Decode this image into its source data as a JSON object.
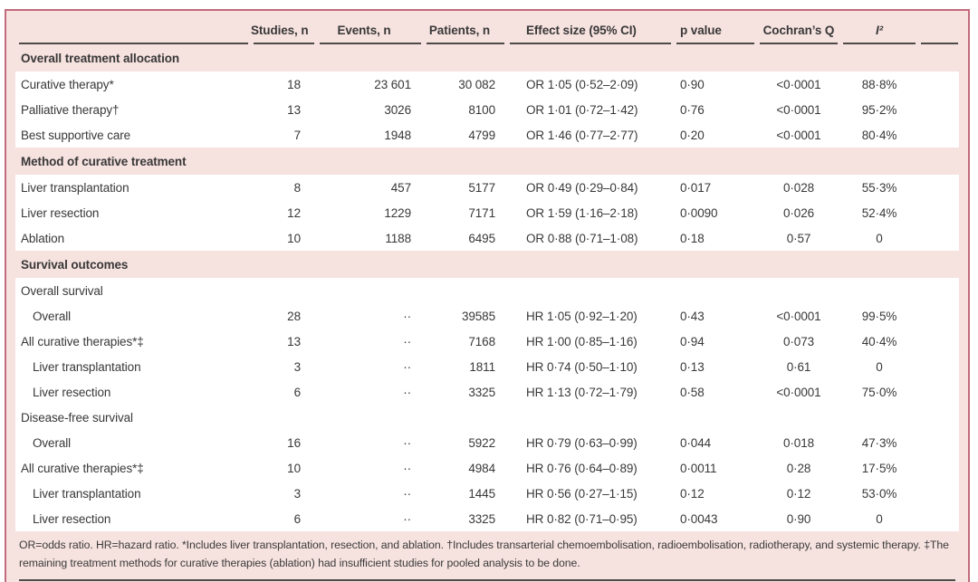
{
  "colors": {
    "border_rose": "#c26b7c",
    "background_pink": "#f6e2df",
    "rule_dark": "#4d4a48",
    "row_white": "#ffffff",
    "text": "#383838"
  },
  "table": {
    "columns": [
      {
        "label": ""
      },
      {
        "label": "Studies, n"
      },
      {
        "label": "Events, n"
      },
      {
        "label": "Patients, n"
      },
      {
        "label": "Effect size (95% CI)"
      },
      {
        "label": "p value"
      },
      {
        "label": "Cochran’s Q"
      },
      {
        "label": "I²"
      },
      {
        "label": ""
      }
    ],
    "rows": [
      {
        "type": "section",
        "label": "Overall treatment allocation"
      },
      {
        "type": "data",
        "indent": 0,
        "label": "Curative therapy*",
        "studies": "18",
        "events": "23 601",
        "patients": "30 082",
        "effect": "OR 1·05 (0·52–2·09)",
        "p": "0·90",
        "q": "<0·0001",
        "i2": "88·8%"
      },
      {
        "type": "data",
        "indent": 0,
        "label": "Palliative therapy†",
        "studies": "13",
        "events": "3026",
        "patients": "8100",
        "effect": "OR 1·01 (0·72–1·42)",
        "p": "0·76",
        "q": "<0·0001",
        "i2": "95·2%"
      },
      {
        "type": "data",
        "indent": 0,
        "label": "Best supportive care",
        "studies": "7",
        "events": "1948",
        "patients": "4799",
        "effect": "OR 1·46 (0·77–2·77)",
        "p": "0·20",
        "q": "<0·0001",
        "i2": "80·4%"
      },
      {
        "type": "section",
        "label": "Method of curative treatment"
      },
      {
        "type": "data",
        "indent": 0,
        "label": "Liver transplantation",
        "studies": "8",
        "events": "457",
        "patients": "5177",
        "effect": "OR 0·49 (0·29–0·84)",
        "p": "0·017",
        "q": "0·028",
        "i2": "55·3%"
      },
      {
        "type": "data",
        "indent": 0,
        "label": "Liver resection",
        "studies": "12",
        "events": "1229",
        "patients": "7171",
        "effect": "OR 1·59 (1·16–2·18)",
        "p": "0·0090",
        "q": "0·026",
        "i2": "52·4%"
      },
      {
        "type": "data",
        "indent": 0,
        "label": "Ablation",
        "studies": "10",
        "events": "1188",
        "patients": "6495",
        "effect": "OR 0·88 (0·71–1·08)",
        "p": "0·18",
        "q": "0·57",
        "i2": "0"
      },
      {
        "type": "section",
        "label": "Survival outcomes"
      },
      {
        "type": "data",
        "indent": 0,
        "label": "Overall survival",
        "studies": "",
        "events": "",
        "patients": "",
        "effect": "",
        "p": "",
        "q": "",
        "i2": ""
      },
      {
        "type": "data",
        "indent": 1,
        "label": "Overall",
        "studies": "28",
        "events": "··",
        "patients": "39585",
        "effect": "HR 1·05 (0·92–1·20)",
        "p": "0·43",
        "q": "<0·0001",
        "i2": "99·5%"
      },
      {
        "type": "data",
        "indent": 0,
        "label": "All curative therapies*‡",
        "studies": "13",
        "events": "··",
        "patients": "7168",
        "effect": "HR 1·00 (0·85–1·16)",
        "p": "0·94",
        "q": "0·073",
        "i2": "40·4%"
      },
      {
        "type": "data",
        "indent": 1,
        "label": "Liver transplantation",
        "studies": "3",
        "events": "··",
        "patients": "1811",
        "effect": "HR 0·74 (0·50–1·10)",
        "p": "0·13",
        "q": "0·61",
        "i2": "0"
      },
      {
        "type": "data",
        "indent": 1,
        "label": "Liver resection",
        "studies": "6",
        "events": "··",
        "patients": "3325",
        "effect": "HR 1·13 (0·72–1·79)",
        "p": "0·58",
        "q": "<0·0001",
        "i2": "75·0%"
      },
      {
        "type": "data",
        "indent": 0,
        "label": "Disease-free survival",
        "studies": "",
        "events": "",
        "patients": "",
        "effect": "",
        "p": "",
        "q": "",
        "i2": ""
      },
      {
        "type": "data",
        "indent": 1,
        "label": "Overall",
        "studies": "16",
        "events": "··",
        "patients": "5922",
        "effect": "HR 0·79 (0·63–0·99)",
        "p": "0·044",
        "q": "0·018",
        "i2": "47·3%"
      },
      {
        "type": "data",
        "indent": 0,
        "label": "All curative therapies*‡",
        "studies": "10",
        "events": "··",
        "patients": "4984",
        "effect": "HR 0·76 (0·64–0·89)",
        "p": "0·0011",
        "q": "0·28",
        "i2": "17·5%"
      },
      {
        "type": "data",
        "indent": 1,
        "label": "Liver transplantation",
        "studies": "3",
        "events": "··",
        "patients": "1445",
        "effect": "HR 0·56 (0·27–1·15)",
        "p": "0·12",
        "q": "0·12",
        "i2": "53·0%"
      },
      {
        "type": "data",
        "indent": 1,
        "label": "Liver resection",
        "studies": "6",
        "events": "··",
        "patients": "3325",
        "effect": "HR 0·82 (0·71–0·95)",
        "p": "0·0043",
        "q": "0·90",
        "i2": "0"
      }
    ],
    "footnote": "OR=odds ratio. HR=hazard ratio. *Includes liver transplantation, resection, and ablation. †Includes transarterial chemoembolisation, radioembolisation, radiotherapy, and systemic therapy. ‡The remaining treatment methods for curative therapies (ablation) had insufficient studies for pooled analysis to be done."
  }
}
